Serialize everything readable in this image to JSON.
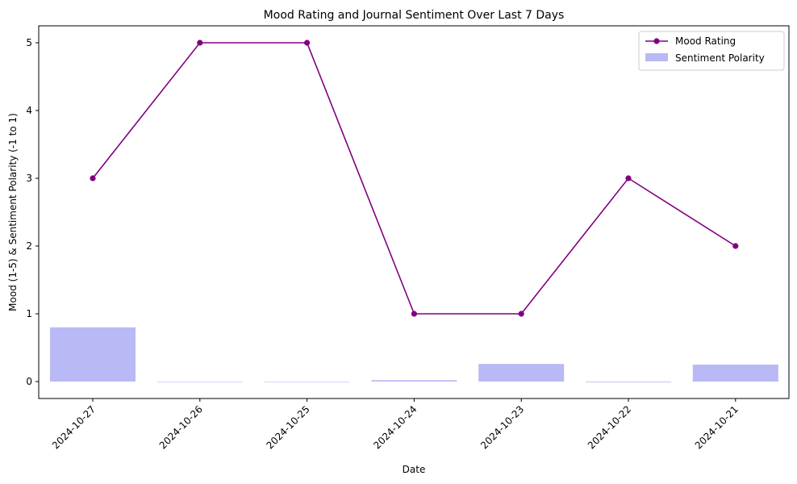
{
  "chart_data": {
    "type": "bar+line",
    "title": "Mood Rating and Journal Sentiment Over Last 7 Days",
    "xlabel": "Date",
    "ylabel": "Mood (1-5) & Sentiment Polarity (-1 to 1)",
    "categories": [
      "2024-10-27",
      "2024-10-26",
      "2024-10-25",
      "2024-10-24",
      "2024-10-23",
      "2024-10-22",
      "2024-10-21"
    ],
    "ylim": [
      -0.25,
      5.25
    ],
    "yticks": [
      0,
      1,
      2,
      3,
      4,
      5
    ],
    "grid": false,
    "legend_position": "top-right",
    "series": [
      {
        "name": "Mood Rating",
        "kind": "line",
        "marker": "circle",
        "color": "#800080",
        "values": [
          3,
          5,
          5,
          1,
          1,
          3,
          2
        ]
      },
      {
        "name": "Sentiment Polarity",
        "kind": "bar",
        "color": "#b9b9f5",
        "values": [
          0.8,
          0.0,
          0.0,
          0.02,
          0.26,
          -0.01,
          0.25
        ]
      }
    ]
  }
}
